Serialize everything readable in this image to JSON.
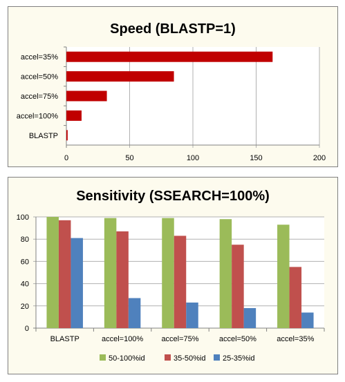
{
  "chart_data": [
    {
      "type": "bar",
      "orientation": "horizontal",
      "title": "Speed (BLASTP=1)",
      "categories": [
        "accel=35%",
        "accel=50%",
        "accel=75%",
        "accel=100%",
        "BLASTP"
      ],
      "values": [
        163,
        85,
        32,
        12,
        1
      ],
      "color": "#c00000",
      "xlim": [
        0,
        200
      ],
      "xticks": [
        0,
        50,
        100,
        150,
        200
      ],
      "grid": true,
      "legend": "none"
    },
    {
      "type": "bar",
      "title": "Sensitivity (SSEARCH=100%)",
      "categories": [
        "BLASTP",
        "accel=100%",
        "accel=75%",
        "accel=50%",
        "accel=35%"
      ],
      "series": [
        {
          "name": "50-100%id",
          "color": "#9bbb59",
          "values": [
            100,
            99,
            99,
            98,
            93
          ]
        },
        {
          "name": "35-50%id",
          "color": "#c0504d",
          "values": [
            97,
            87,
            83,
            75,
            55
          ]
        },
        {
          "name": "25-35%id",
          "color": "#4f81bd",
          "values": [
            81,
            27,
            23,
            18,
            14
          ]
        }
      ],
      "ylim": [
        0,
        100
      ],
      "yticks": [
        0,
        20,
        40,
        60,
        80,
        100
      ],
      "grid": true,
      "legend": "bottom"
    }
  ]
}
